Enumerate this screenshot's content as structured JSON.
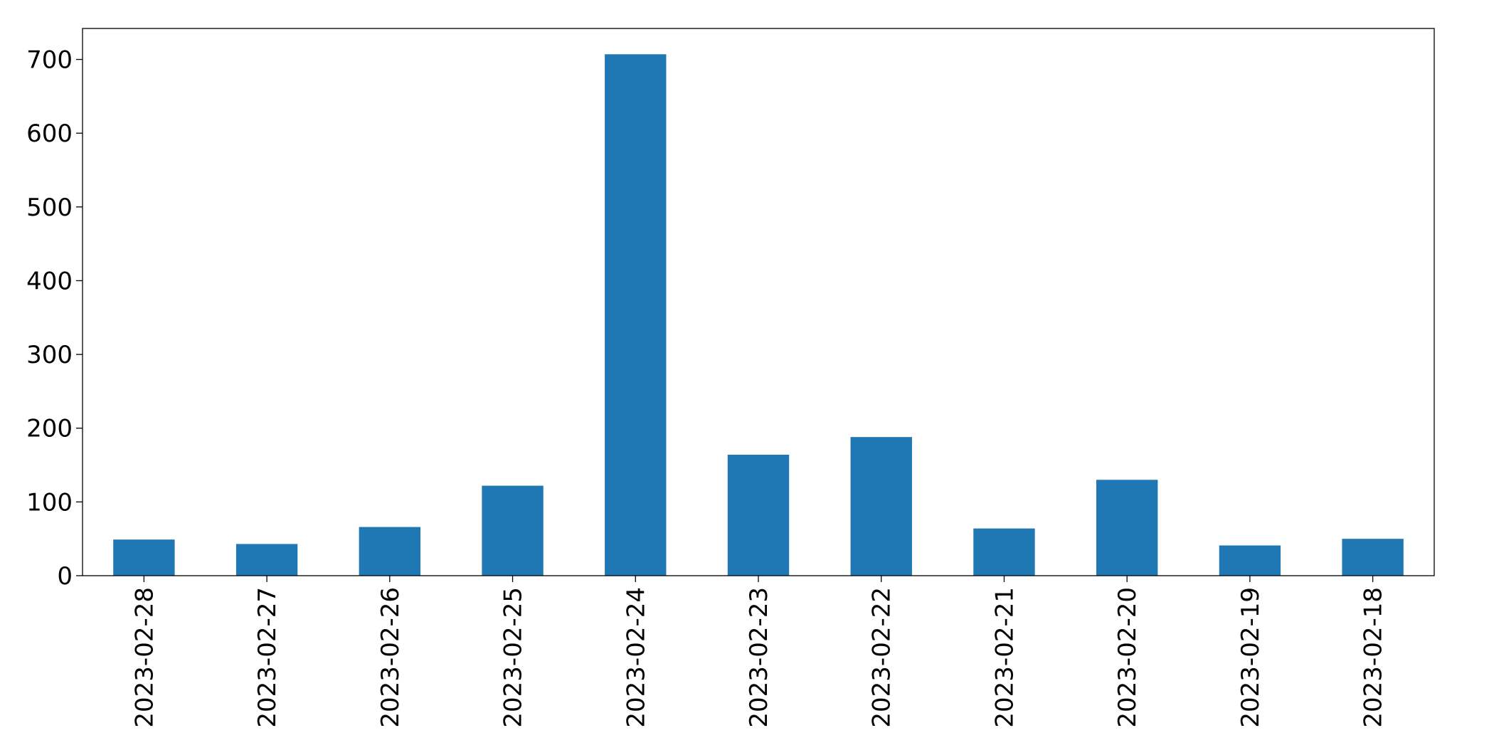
{
  "chart_data": {
    "type": "bar",
    "categories": [
      "2023-02-28",
      "2023-02-27",
      "2023-02-26",
      "2023-02-25",
      "2023-02-24",
      "2023-02-23",
      "2023-02-22",
      "2023-02-21",
      "2023-02-20",
      "2023-02-19",
      "2023-02-18"
    ],
    "values": [
      49,
      43,
      66,
      122,
      707,
      164,
      188,
      64,
      130,
      41,
      50
    ],
    "color": "#1f77b4",
    "ylim": [
      0,
      742
    ],
    "yticks": [
      0,
      100,
      200,
      300,
      400,
      500,
      600,
      700
    ],
    "grid": false
  }
}
